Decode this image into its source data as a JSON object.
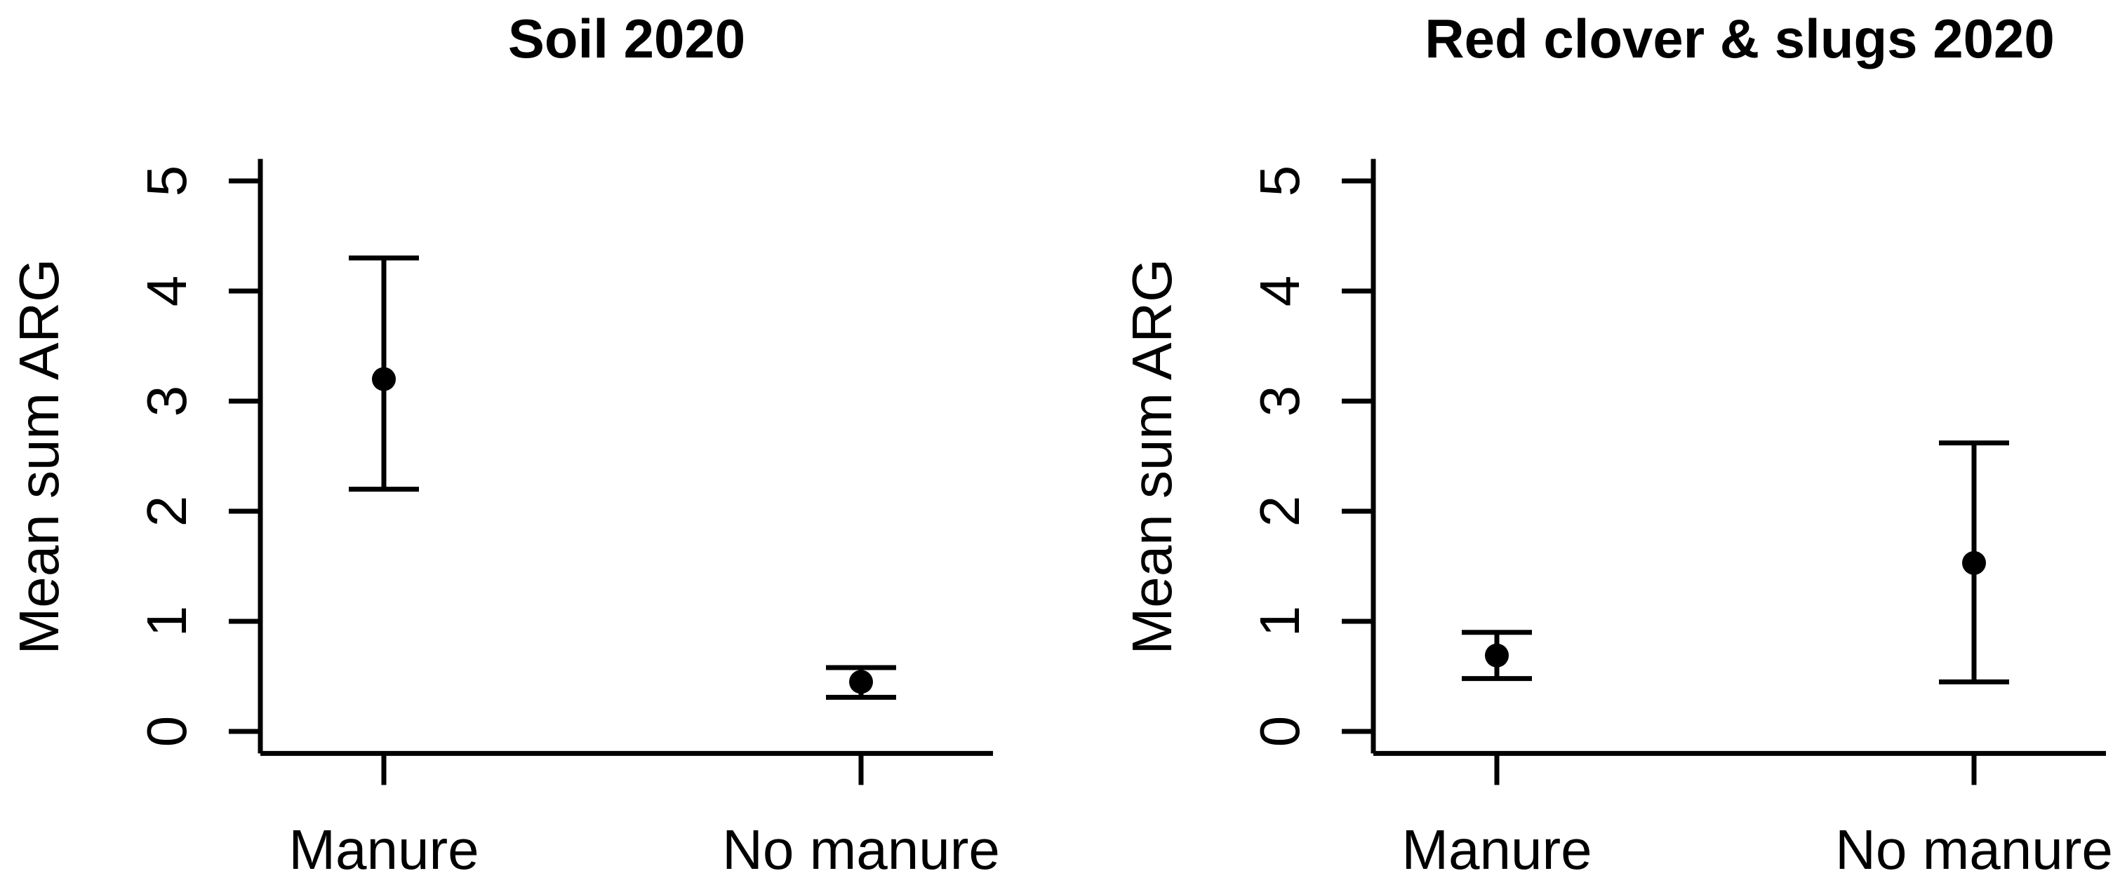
{
  "figure": {
    "background_color": "#ffffff",
    "ink_color": "#000000"
  },
  "chart_data": {
    "type": "scatter",
    "subtype": "mean-with-error-bars",
    "layout": "two-panel-side-by-side",
    "grid": false,
    "legend": null,
    "marker": "filled-circle",
    "error_bars": "vertical-with-caps",
    "ylabel": "Mean sum ARG",
    "yticks": [
      0,
      1,
      2,
      3,
      4,
      5
    ],
    "ylim": [
      -0.2,
      5.2
    ],
    "ytick_label_orientation": "rotated-90",
    "categories": [
      "Manure",
      "No manure"
    ],
    "panels": [
      {
        "title": "Soil 2020",
        "series": [
          {
            "category": "Manure",
            "mean": 3.2,
            "ci_low": 2.2,
            "ci_high": 4.3
          },
          {
            "category": "No manure",
            "mean": 0.45,
            "ci_low": 0.31,
            "ci_high": 0.58
          }
        ]
      },
      {
        "title": "Red clover & slugs 2020",
        "series": [
          {
            "category": "Manure",
            "mean": 0.69,
            "ci_low": 0.48,
            "ci_high": 0.9
          },
          {
            "category": "No manure",
            "mean": 1.53,
            "ci_low": 0.45,
            "ci_high": 2.62
          }
        ]
      }
    ]
  }
}
